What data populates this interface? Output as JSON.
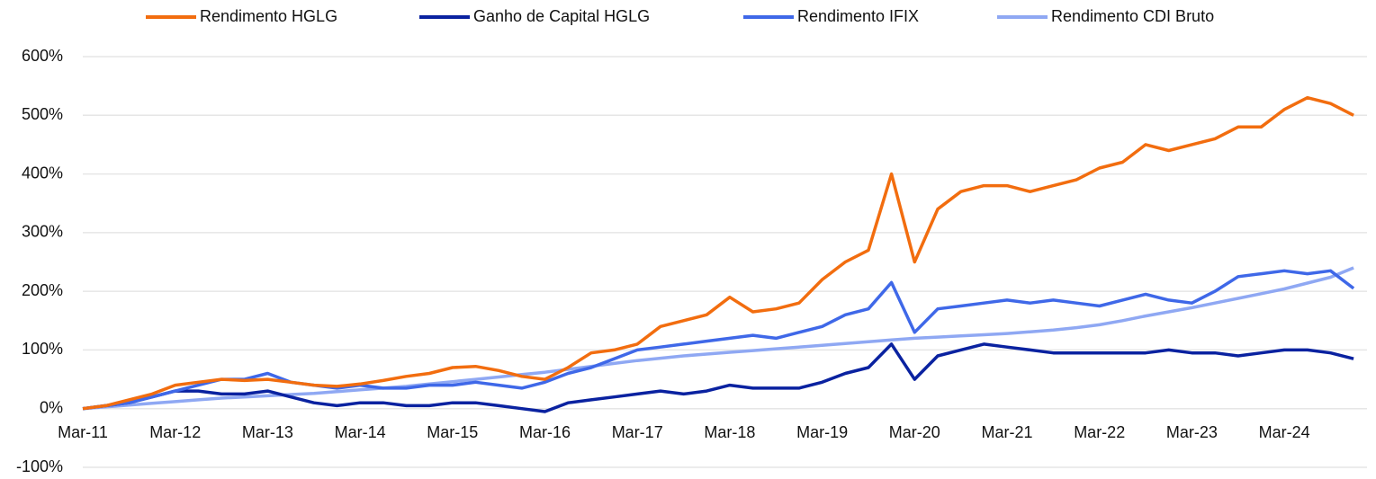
{
  "chart_data": {
    "type": "line",
    "categories": [
      "Mar-11",
      null,
      null,
      null,
      "Mar-12",
      null,
      null,
      null,
      "Mar-13",
      null,
      null,
      null,
      "Mar-14",
      null,
      null,
      null,
      "Mar-15",
      null,
      null,
      null,
      "Mar-16",
      null,
      null,
      null,
      "Mar-17",
      null,
      null,
      null,
      "Mar-18",
      null,
      null,
      null,
      "Mar-19",
      null,
      null,
      null,
      "Mar-20",
      null,
      null,
      null,
      "Mar-21",
      null,
      null,
      null,
      "Mar-22",
      null,
      null,
      null,
      "Mar-23",
      null,
      null,
      null,
      "Mar-24",
      null,
      null,
      null
    ],
    "series": [
      {
        "name": "Rendimento HGLG",
        "color": "#f26d0f",
        "values": [
          0,
          5,
          15,
          25,
          40,
          45,
          50,
          48,
          50,
          45,
          40,
          38,
          42,
          48,
          55,
          60,
          70,
          72,
          65,
          55,
          50,
          70,
          95,
          100,
          110,
          140,
          150,
          160,
          190,
          165,
          170,
          180,
          220,
          250,
          270,
          400,
          250,
          340,
          370,
          380,
          380,
          370,
          380,
          390,
          410,
          420,
          450,
          440,
          450,
          460,
          480,
          480,
          510,
          530,
          520,
          500
        ]
      },
      {
        "name": "Ganho de Capital HGLG",
        "color": "#0a22a0",
        "values": [
          0,
          5,
          10,
          20,
          30,
          30,
          25,
          25,
          30,
          20,
          10,
          5,
          10,
          10,
          5,
          5,
          10,
          10,
          5,
          0,
          -5,
          10,
          15,
          20,
          25,
          30,
          25,
          30,
          40,
          35,
          35,
          35,
          45,
          60,
          70,
          110,
          50,
          90,
          100,
          110,
          105,
          100,
          95,
          95,
          95,
          95,
          95,
          100,
          95,
          95,
          90,
          95,
          100,
          100,
          95,
          85
        ]
      },
      {
        "name": "Rendimento IFIX",
        "color": "#3f68e8",
        "values": [
          0,
          5,
          10,
          20,
          30,
          40,
          50,
          50,
          60,
          45,
          40,
          35,
          40,
          35,
          35,
          40,
          40,
          45,
          40,
          35,
          45,
          60,
          70,
          85,
          100,
          105,
          110,
          115,
          120,
          125,
          120,
          130,
          140,
          160,
          170,
          215,
          130,
          170,
          175,
          180,
          185,
          180,
          185,
          180,
          175,
          185,
          195,
          185,
          180,
          200,
          225,
          230,
          235,
          230,
          235,
          205
        ]
      },
      {
        "name": "Rendimento CDI Bruto",
        "color": "#8fa8f3",
        "values": [
          0,
          3,
          6,
          9,
          12,
          15,
          18,
          20,
          22,
          24,
          26,
          29,
          32,
          35,
          38,
          42,
          46,
          50,
          54,
          58,
          62,
          67,
          72,
          77,
          82,
          86,
          90,
          93,
          96,
          99,
          102,
          105,
          108,
          111,
          114,
          117,
          120,
          122,
          124,
          126,
          128,
          131,
          134,
          138,
          143,
          150,
          158,
          165,
          172,
          180,
          188,
          196,
          204,
          214,
          224,
          240
        ]
      }
    ],
    "ylim": [
      -100,
      600
    ],
    "yticks": [
      {
        "value": -100,
        "label": "-100%"
      },
      {
        "value": 0,
        "label": "0%"
      },
      {
        "value": 100,
        "label": "100%"
      },
      {
        "value": 200,
        "label": "200%"
      },
      {
        "value": 300,
        "label": "300%"
      },
      {
        "value": 400,
        "label": "400%"
      },
      {
        "value": 500,
        "label": "500%"
      },
      {
        "value": 600,
        "label": "600%"
      }
    ],
    "grid": true,
    "legend": "top"
  }
}
